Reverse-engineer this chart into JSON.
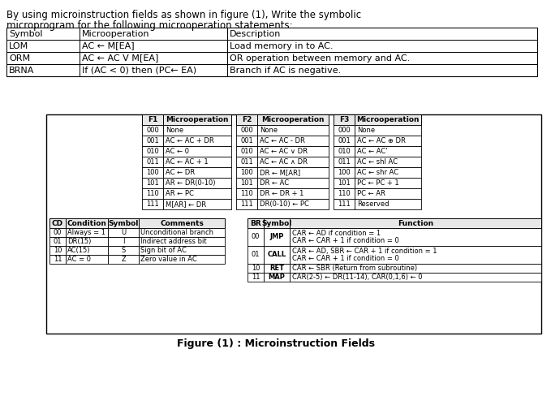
{
  "title_line1": "By using microinstruction fields as shown in figure (1), Write the symbolic",
  "title_line2": "microprogram for the following microoperation statements:",
  "top_table_headers": [
    "Symbol",
    "Microoperation",
    "Description"
  ],
  "top_table_rows": [
    [
      "LOM",
      "AC ← M[EA]",
      "Load memory in to AC."
    ],
    [
      "ORM",
      "AC ← AC V M[EA]",
      "OR operation between memory and AC."
    ],
    [
      "BRNA",
      "If (AC < 0) then (PC← EA)",
      "Branch if AC is negative."
    ]
  ],
  "f1_rows": [
    [
      "000",
      "None"
    ],
    [
      "001",
      "AC ← AC + DR"
    ],
    [
      "010",
      "AC ← 0"
    ],
    [
      "011",
      "AC ← AC + 1"
    ],
    [
      "100",
      "AC ← DR"
    ],
    [
      "101",
      "AR ← DR(0-10)"
    ],
    [
      "110",
      "AR ← PC"
    ],
    [
      "111",
      "M[AR] ← DR"
    ]
  ],
  "f2_rows": [
    [
      "000",
      "None"
    ],
    [
      "001",
      "AC ← AC - DR"
    ],
    [
      "010",
      "AC ← AC ∨ DR"
    ],
    [
      "011",
      "AC ← AC ∧ DR"
    ],
    [
      "100",
      "DR ← M[AR]"
    ],
    [
      "101",
      "DR ← AC"
    ],
    [
      "110",
      "DR ← DR + 1"
    ],
    [
      "111",
      "DR(0-10) ← PC"
    ]
  ],
  "f3_rows": [
    [
      "000",
      "None"
    ],
    [
      "001",
      "AC ← AC ⊕ DR"
    ],
    [
      "010",
      "AC ← AC'"
    ],
    [
      "011",
      "AC ← shl AC"
    ],
    [
      "100",
      "AC ← shr AC"
    ],
    [
      "101",
      "PC ← PC + 1"
    ],
    [
      "110",
      "PC ← AR"
    ],
    [
      "111",
      "Reserved"
    ]
  ],
  "cd_rows": [
    [
      "00",
      "Always = 1",
      "U",
      "Unconditional branch"
    ],
    [
      "01",
      "DR(15)",
      "I",
      "Indirect address bit"
    ],
    [
      "10",
      "AC(15)",
      "S",
      "Sign bit of AC"
    ],
    [
      "11",
      "AC = 0",
      "Z",
      "Zero value in AC"
    ]
  ],
  "br_rows": [
    [
      "00",
      "JMP",
      "CAR ← AD if condition = 1",
      "CAR ← CAR + 1 if condition = 0"
    ],
    [
      "01",
      "CALL",
      "CAR ← AD, SBR ← CAR + 1 if condition = 1",
      "CAR ← CAR + 1 if condition = 0"
    ],
    [
      "10",
      "RET",
      "CAR ← SBR (Return from subroutine)",
      ""
    ],
    [
      "11",
      "MAP",
      "CAR(2-5) ← DR(11-14), CAR(0,1,6) ← 0",
      ""
    ]
  ],
  "figure_caption": "Figure (1) : Microinstruction Fields"
}
